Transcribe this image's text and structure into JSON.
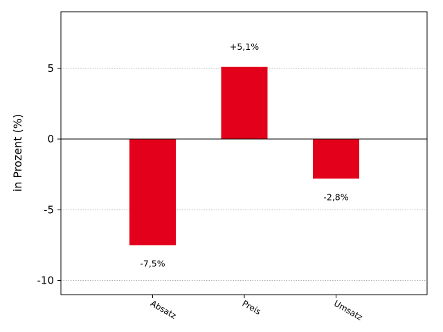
{
  "chart_data": {
    "type": "bar",
    "categories": [
      "Absatz",
      "Preis",
      "Umsatz"
    ],
    "values": [
      -7.5,
      5.1,
      -2.8
    ],
    "data_labels": [
      "-7,5%",
      "+5,1%",
      "-2,8%"
    ],
    "title": "",
    "xlabel": "",
    "ylabel": "in Prozent (%)",
    "ylim": [
      -11,
      9
    ],
    "yticks": [
      5,
      0,
      -5,
      -10
    ],
    "ytick_labels": [
      "5",
      "0",
      "-5",
      "-10"
    ],
    "grid": "horizontal dotted",
    "bar_color": "#e2001a",
    "zero_line_color": "#000000"
  }
}
